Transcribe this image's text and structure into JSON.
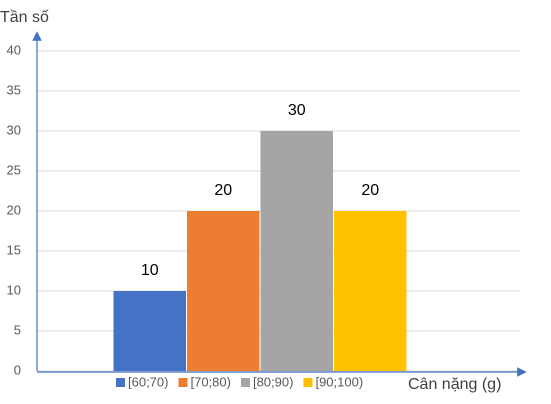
{
  "chart_data": {
    "type": "bar",
    "x_label": "Cân nặng (g)",
    "y_label": "Tần số",
    "categories": [
      null
    ],
    "series": [
      {
        "name": "[60;70)",
        "color": "#4472c4",
        "values": [
          10
        ]
      },
      {
        "name": "[70;80)",
        "color": "#ed7d31",
        "values": [
          20
        ]
      },
      {
        "name": "[80;90)",
        "color": "#a5a5a5",
        "values": [
          30
        ]
      },
      {
        "name": "[90;100)",
        "color": "#ffc000",
        "values": [
          20
        ]
      }
    ],
    "ylim": [
      0,
      40
    ],
    "yticks": [
      0,
      5,
      10,
      15,
      20,
      25,
      30,
      35,
      40
    ],
    "grid": true,
    "legend": "bottom"
  }
}
